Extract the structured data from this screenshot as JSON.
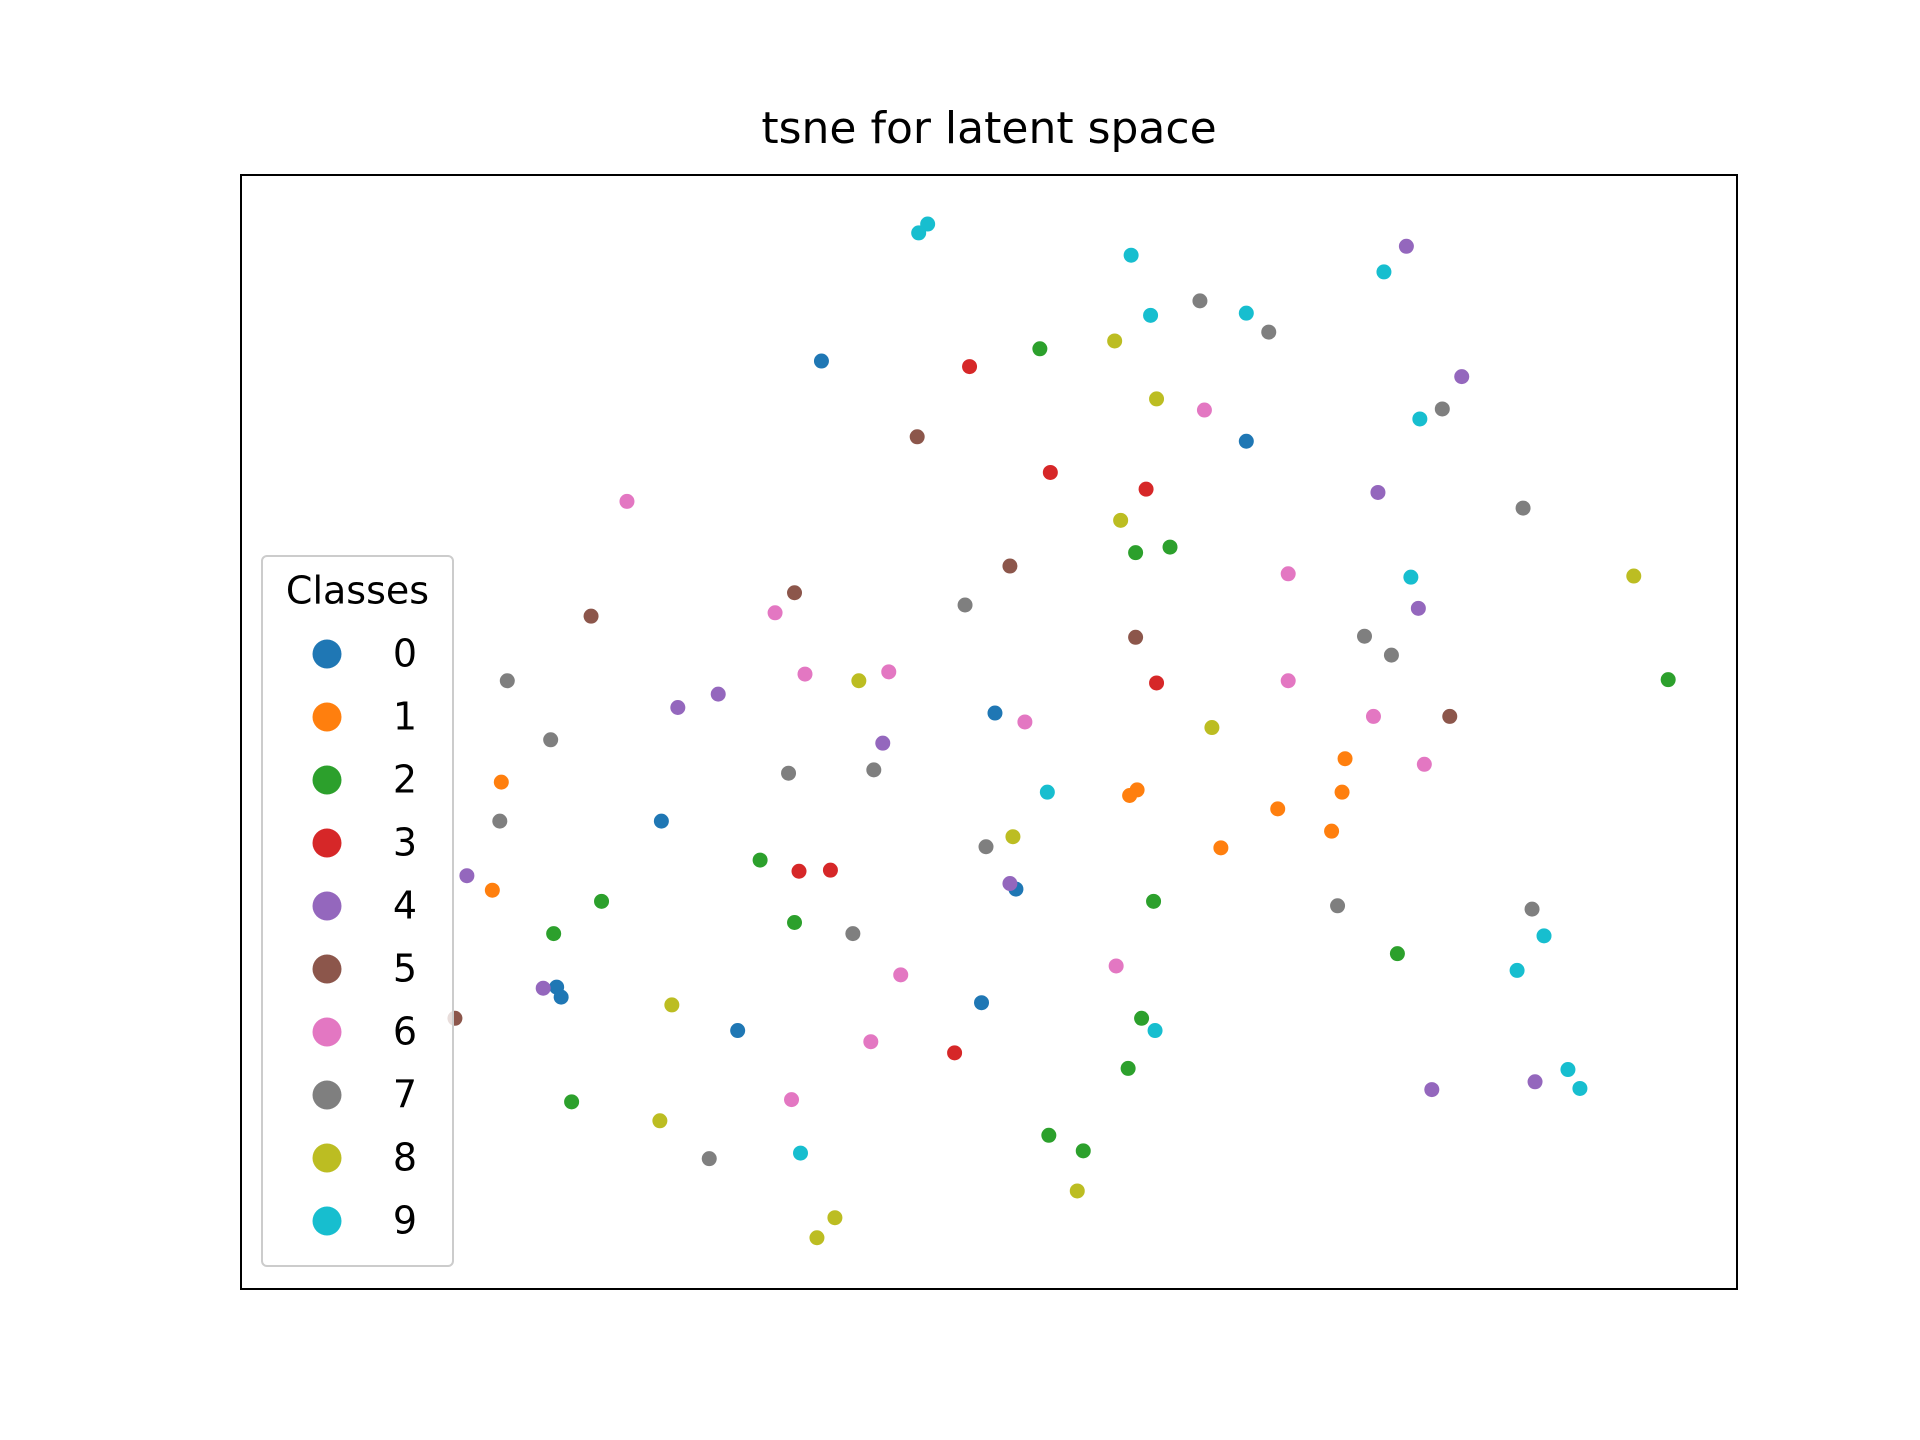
{
  "chart_data": {
    "type": "scatter",
    "title": "tsne for latent space",
    "xlim": [
      0,
      100
    ],
    "ylim": [
      0,
      100
    ],
    "legend_title": "Classes",
    "legend": "lower left",
    "series": [
      {
        "name": "0",
        "color": "#1f77b4",
        "x": [
          38.8,
          67.2,
          50.4,
          28.1,
          51.8,
          21.1,
          21.4,
          33.2,
          49.5
        ],
        "values": [
          83.3,
          76.1,
          51.7,
          42.0,
          35.9,
          27.1,
          26.2,
          23.2,
          25.7
        ]
      },
      {
        "name": "1",
        "color": "#ff7f0e",
        "x": [
          17.4,
          16.8,
          59.9,
          59.4,
          73.8,
          73.6,
          69.3,
          72.9,
          65.5
        ],
        "values": [
          45.5,
          35.8,
          44.8,
          44.3,
          47.6,
          44.6,
          43.1,
          41.1,
          39.6
        ]
      },
      {
        "name": "2",
        "color": "#2ca02c",
        "x": [
          53.4,
          59.8,
          62.1,
          95.4,
          34.7,
          37.0,
          24.1,
          20.9,
          61.0,
          77.3,
          60.2,
          59.3,
          22.1,
          54.0,
          56.3
        ],
        "values": [
          84.4,
          66.1,
          66.6,
          54.7,
          38.5,
          32.9,
          34.8,
          31.9,
          34.8,
          30.1,
          24.3,
          19.8,
          16.8,
          13.8,
          12.4
        ]
      },
      {
        "name": "3",
        "color": "#d62728",
        "x": [
          48.7,
          54.1,
          60.5,
          61.2,
          37.3,
          39.4,
          47.7
        ],
        "values": [
          82.8,
          73.3,
          71.8,
          54.4,
          37.5,
          37.6,
          21.2
        ]
      },
      {
        "name": "4",
        "color": "#9467bd",
        "x": [
          77.9,
          81.6,
          76.0,
          78.7,
          29.2,
          31.9,
          42.9,
          15.1,
          51.4,
          20.2,
          79.6,
          86.5
        ],
        "values": [
          93.6,
          81.9,
          71.5,
          61.1,
          52.2,
          53.4,
          49.0,
          37.1,
          36.4,
          27.0,
          17.9,
          18.6
        ]
      },
      {
        "name": "5",
        "color": "#8c564b",
        "x": [
          45.2,
          51.4,
          37.0,
          23.4,
          59.8,
          80.8,
          14.3
        ],
        "values": [
          76.5,
          64.9,
          62.5,
          60.4,
          58.5,
          51.4,
          24.3
        ]
      },
      {
        "name": "6",
        "color": "#e377c2",
        "x": [
          25.8,
          64.4,
          70.0,
          35.7,
          37.7,
          43.3,
          70.0,
          75.7,
          52.4,
          79.1,
          44.1,
          58.5,
          42.1,
          36.8
        ],
        "values": [
          70.7,
          78.9,
          64.2,
          60.7,
          55.2,
          55.4,
          54.6,
          51.4,
          50.9,
          47.1,
          28.2,
          29.0,
          22.2,
          17.0
        ]
      },
      {
        "name": "7",
        "color": "#7f7f7f",
        "x": [
          64.1,
          68.7,
          80.3,
          85.7,
          48.4,
          75.1,
          76.9,
          17.8,
          20.7,
          36.6,
          42.3,
          17.3,
          49.8,
          40.9,
          73.3,
          86.3,
          31.3
        ],
        "values": [
          88.7,
          85.9,
          79.0,
          70.1,
          61.4,
          58.6,
          56.9,
          54.6,
          49.3,
          46.3,
          46.6,
          42.0,
          39.7,
          31.9,
          34.4,
          34.1,
          11.7
        ]
      },
      {
        "name": "8",
        "color": "#bcbd22",
        "x": [
          58.4,
          61.2,
          58.8,
          93.1,
          41.3,
          64.9,
          51.6,
          28.8,
          28.0,
          55.9,
          39.7,
          38.5
        ],
        "values": [
          85.1,
          79.9,
          69.0,
          64.0,
          54.6,
          50.4,
          40.6,
          25.5,
          15.1,
          8.8,
          6.4,
          4.6
        ]
      },
      {
        "name": "9",
        "color": "#17becf",
        "x": [
          45.9,
          45.3,
          59.5,
          60.8,
          67.2,
          76.4,
          78.8,
          78.2,
          53.9,
          87.1,
          85.3,
          61.1,
          37.4,
          88.7,
          89.5
        ],
        "values": [
          95.6,
          94.8,
          92.8,
          87.4,
          87.6,
          91.3,
          78.1,
          63.9,
          44.6,
          31.7,
          28.6,
          23.2,
          12.2,
          19.7,
          18.0
        ]
      }
    ]
  }
}
